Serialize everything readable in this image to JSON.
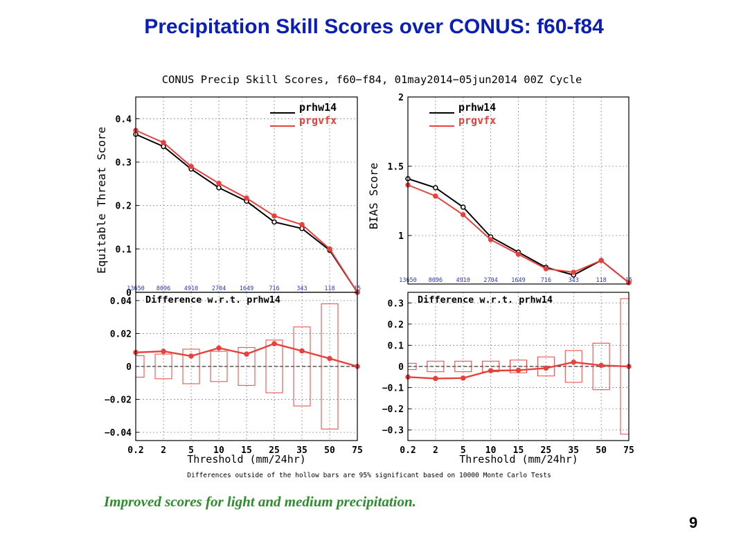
{
  "slide": {
    "title": "Precipitation Skill Scores over CONUS:  f60-f84",
    "caption": "Improved scores for light and medium precipitation.",
    "page_number": "9"
  },
  "figure": {
    "title": "CONUS Precip Skill Scores, f60−f84, 01may2014−05jun2014 00Z Cycle",
    "footnote": "Differences outside of the hollow bars are 95% significant based on 10000 Monte Carlo Tests",
    "xlabel": "Threshold (mm/24hr)",
    "diff_label": "Difference w.r.t. prhw14"
  },
  "chart_data": [
    {
      "type": "line",
      "panel": "top-left",
      "ylabel": "Equitable Threat Score",
      "ylim": [
        0,
        0.45
      ],
      "yticks": [
        "0",
        "0.1",
        "0.2",
        "0.3",
        "0.4"
      ],
      "categories": [
        "0.2",
        "2",
        "5",
        "10",
        "15",
        "25",
        "35",
        "50",
        "75"
      ],
      "counts": [
        "13650",
        "8096",
        "4910",
        "2704",
        "1649",
        "716",
        "343",
        "118",
        "15"
      ],
      "legend_position": "top-right",
      "grid": true,
      "series": [
        {
          "name": "prhw14",
          "color": "#000000",
          "values": [
            0.364,
            0.336,
            0.284,
            0.241,
            0.21,
            0.162,
            0.147,
            0.097,
            0.0
          ]
        },
        {
          "name": "prgvfx",
          "color": "#e8403c",
          "values": [
            0.373,
            0.345,
            0.29,
            0.251,
            0.217,
            0.176,
            0.156,
            0.1,
            0.0
          ]
        }
      ]
    },
    {
      "type": "line",
      "panel": "top-right",
      "ylabel": "BIAS Score",
      "ylim": [
        0.65,
        2
      ],
      "yticks": [
        "1",
        "1.5",
        "2"
      ],
      "categories": [
        "0.2",
        "2",
        "5",
        "10",
        "15",
        "25",
        "35",
        "50",
        "75"
      ],
      "counts": [
        "13650",
        "8096",
        "4910",
        "2704",
        "1649",
        "716",
        "343",
        "118",
        "15"
      ],
      "legend_position": "top-left",
      "grid": true,
      "series": [
        {
          "name": "prhw14",
          "color": "#000000",
          "values": [
            1.41,
            1.345,
            1.205,
            0.99,
            0.88,
            0.77,
            0.715,
            0.82,
            0.66
          ]
        },
        {
          "name": "prgvfx",
          "color": "#e8403c",
          "values": [
            1.365,
            1.285,
            1.15,
            0.97,
            0.865,
            0.76,
            0.735,
            0.82,
            0.66
          ]
        }
      ]
    },
    {
      "type": "line",
      "panel": "bottom-left",
      "ylim": [
        -0.045,
        0.045
      ],
      "yticks": [
        "−0.04",
        "−0.02",
        "0",
        "0.02",
        "0.04"
      ],
      "categories": [
        "0.2",
        "2",
        "5",
        "10",
        "15",
        "25",
        "35",
        "50",
        "75"
      ],
      "grid": true,
      "series": [
        {
          "name": "Difference w.r.t. prhw14",
          "color": "#e8403c",
          "values": [
            0.0085,
            0.0092,
            0.0063,
            0.0112,
            0.0075,
            0.0138,
            0.0094,
            0.0048,
            0.0
          ]
        }
      ],
      "significance_bars": [
        0.0065,
        0.0075,
        0.0105,
        0.0092,
        0.0115,
        0.016,
        0.024,
        0.038,
        0.0
      ]
    },
    {
      "type": "line",
      "panel": "bottom-right",
      "ylim": [
        -0.35,
        0.35
      ],
      "yticks": [
        "−0.3",
        "−0.2",
        "−0.1",
        "0",
        "0.1",
        "0.2",
        "0.3"
      ],
      "categories": [
        "0.2",
        "2",
        "5",
        "10",
        "15",
        "25",
        "35",
        "50",
        "75"
      ],
      "grid": true,
      "series": [
        {
          "name": "Difference w.r.t. prhw14",
          "color": "#e8403c",
          "values": [
            -0.05,
            -0.057,
            -0.055,
            -0.02,
            -0.018,
            -0.008,
            0.02,
            0.005,
            0.0
          ]
        }
      ],
      "significance_bars": [
        0.015,
        0.025,
        0.025,
        0.025,
        0.03,
        0.045,
        0.075,
        0.11,
        0.32
      ]
    }
  ]
}
